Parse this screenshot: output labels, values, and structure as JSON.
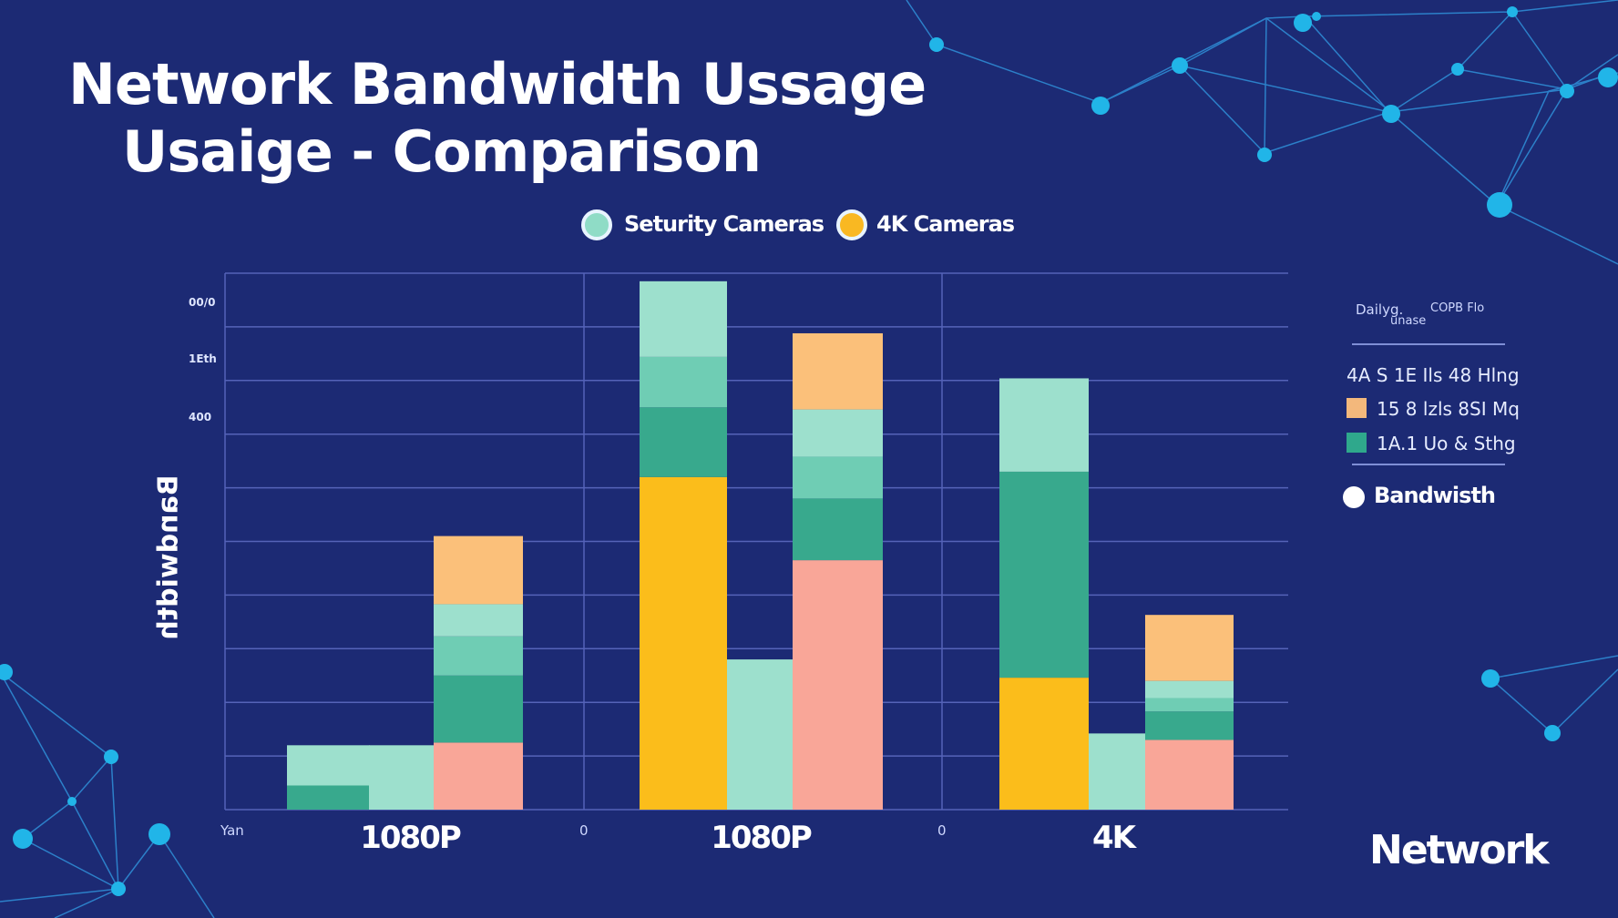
{
  "title": {
    "line1": "Network Bandwidth Ussage",
    "line2": "Usaige - Comparison"
  },
  "legend": [
    {
      "label": "Seturity Cameras",
      "color": "#8fdcc6"
    },
    {
      "label": "4K Cameras",
      "color": "#f9b822"
    }
  ],
  "chart_data": {
    "type": "bar",
    "stacked": true,
    "title": "Network Bandwidth Ussage Usaige - Comparison",
    "ylabel": "Bandwidth",
    "ytick_labels": [
      "00/0",
      "1Eth",
      "400"
    ],
    "xtick_labels": [
      "Yan",
      "1080P",
      "0",
      "1080P",
      "0",
      "4K"
    ],
    "categories": [
      "1080P",
      "1080P",
      "4K"
    ],
    "ylim": [
      0,
      10
    ],
    "grid": true,
    "colors": {
      "mint": "#9de0cd",
      "teal": "#6fcdb4",
      "darkteal": "#38a98d",
      "yellow": "#fbbd1b",
      "peach": "#fbc07a",
      "pink": "#f9a698"
    },
    "bars": [
      {
        "group": 0,
        "segments": [
          {
            "color": "darkteal",
            "value": 0.45
          },
          {
            "color": "mint",
            "value": 0.75
          }
        ]
      },
      {
        "group": 0,
        "segments": [
          {
            "color": "mint",
            "value": 1.2
          }
        ]
      },
      {
        "group": 0,
        "segments": [
          {
            "color": "pink",
            "value": 1.25
          },
          {
            "color": "darkteal",
            "value": 1.25
          },
          {
            "color": "teal",
            "value": 0.73
          },
          {
            "color": "mint",
            "value": 0.6
          },
          {
            "color": "peach",
            "value": 1.27
          }
        ]
      },
      {
        "group": 1,
        "segments": [
          {
            "color": "yellow",
            "value": 6.2
          },
          {
            "color": "darkteal",
            "value": 1.3
          },
          {
            "color": "teal",
            "value": 0.94
          },
          {
            "color": "mint",
            "value": 1.41
          }
        ]
      },
      {
        "group": 1,
        "segments": [
          {
            "color": "mint",
            "value": 2.8
          }
        ]
      },
      {
        "group": 1,
        "segments": [
          {
            "color": "pink",
            "value": 4.65
          },
          {
            "color": "darkteal",
            "value": 1.15
          },
          {
            "color": "teal",
            "value": 0.78
          },
          {
            "color": "mint",
            "value": 0.88
          },
          {
            "color": "peach",
            "value": 1.42
          }
        ]
      },
      {
        "group": 2,
        "segments": [
          {
            "color": "yellow",
            "value": 2.46
          },
          {
            "color": "darkteal",
            "value": 3.84
          },
          {
            "color": "mint",
            "value": 1.74
          }
        ]
      },
      {
        "group": 2,
        "segments": [
          {
            "color": "mint",
            "value": 1.42
          }
        ]
      },
      {
        "group": 2,
        "segments": [
          {
            "color": "pink",
            "value": 1.3
          },
          {
            "color": "darkteal",
            "value": 0.53
          },
          {
            "color": "teal",
            "value": 0.25
          },
          {
            "color": "mint",
            "value": 0.32
          },
          {
            "color": "peach",
            "value": 1.23
          }
        ]
      }
    ]
  },
  "side_panel": {
    "header_a": "Dailyg.",
    "header_b": "unase",
    "header_c": "COPB Flo",
    "rows": [
      {
        "label": "4A  S 1E Ils 48 Hlng",
        "color": ""
      },
      {
        "label": "15 8 lzls 8SI Mq",
        "color": "#f3b87c"
      },
      {
        "label": "1A.1 Uo & Sthg",
        "color": "#2fa88c"
      }
    ],
    "bandwidth_label": "Bandwisth"
  },
  "logo": "Network"
}
